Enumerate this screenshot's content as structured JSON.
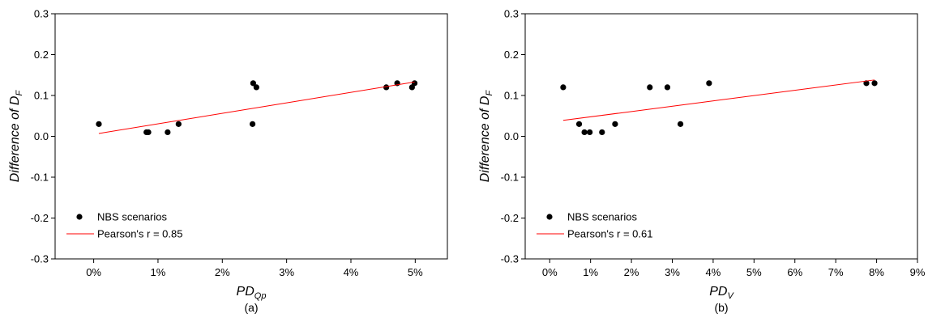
{
  "chart_data": [
    {
      "type": "scatter",
      "panel_label": "(a)",
      "xlabel": {
        "main": "PD",
        "sub": "Qp"
      },
      "ylabel": {
        "main": "Difference of D",
        "sub": "F"
      },
      "xlim": [
        -0.6,
        5.5
      ],
      "ylim": [
        -0.3,
        0.3
      ],
      "x_ticks": [
        0,
        1,
        2,
        3,
        4,
        5
      ],
      "x_tick_labels": [
        "0%",
        "1%",
        "2%",
        "3%",
        "4%",
        "5%"
      ],
      "y_ticks": [
        -0.3,
        -0.2,
        -0.1,
        0.0,
        0.1,
        0.2,
        0.3
      ],
      "y_tick_labels": [
        "-0.3",
        "-0.2",
        "-0.1",
        "0.0",
        "0.1",
        "0.2",
        "0.3"
      ],
      "grid": false,
      "legend_position": "bottom-left",
      "series": [
        {
          "name": "NBS scenarios",
          "kind": "points",
          "color": "#000000",
          "x": [
            0.08,
            0.82,
            0.85,
            1.15,
            1.32,
            2.47,
            2.48,
            2.53,
            4.55,
            4.72,
            4.95,
            4.99
          ],
          "y": [
            0.03,
            0.01,
            0.01,
            0.01,
            0.03,
            0.03,
            0.13,
            0.12,
            0.12,
            0.13,
            0.12,
            0.13
          ]
        },
        {
          "name": "Pearson's r = 0.85",
          "kind": "line",
          "color": "#ff0000",
          "x": [
            0.08,
            4.99
          ],
          "y": [
            0.007,
            0.133
          ]
        }
      ]
    },
    {
      "type": "scatter",
      "panel_label": "(b)",
      "xlabel": {
        "main": "PD",
        "sub": "V"
      },
      "ylabel": {
        "main": "Difference of D",
        "sub": "F"
      },
      "xlim": [
        -0.6,
        9.0
      ],
      "ylim": [
        -0.3,
        0.3
      ],
      "x_ticks": [
        0,
        1,
        2,
        3,
        4,
        5,
        6,
        7,
        8,
        9
      ],
      "x_tick_labels": [
        "0%",
        "1%",
        "2%",
        "3%",
        "4%",
        "5%",
        "6%",
        "7%",
        "8%",
        "9%"
      ],
      "y_ticks": [
        -0.3,
        -0.2,
        -0.1,
        0.0,
        0.1,
        0.2,
        0.3
      ],
      "y_tick_labels": [
        "-0.3",
        "-0.2",
        "-0.1",
        "0.0",
        "0.1",
        "0.2",
        "0.3"
      ],
      "grid": false,
      "legend_position": "bottom-left",
      "series": [
        {
          "name": "NBS scenarios",
          "kind": "points",
          "color": "#000000",
          "x": [
            0.33,
            0.72,
            0.85,
            0.98,
            1.28,
            1.6,
            2.45,
            2.88,
            3.2,
            3.9,
            7.75,
            7.95
          ],
          "y": [
            0.12,
            0.03,
            0.01,
            0.01,
            0.01,
            0.03,
            0.12,
            0.12,
            0.03,
            0.13,
            0.13,
            0.13
          ]
        },
        {
          "name": "Pearson's r = 0.61",
          "kind": "line",
          "color": "#ff0000",
          "x": [
            0.33,
            7.95
          ],
          "y": [
            0.039,
            0.138
          ]
        }
      ]
    }
  ]
}
